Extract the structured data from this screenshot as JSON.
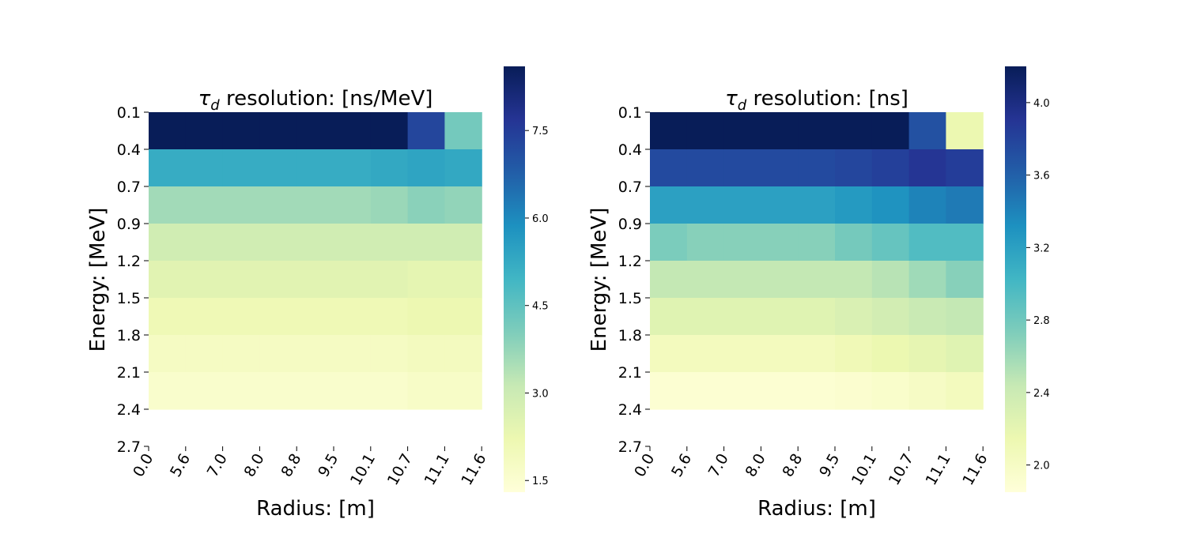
{
  "chart_data": [
    {
      "type": "heatmap",
      "title_symbol": "τ",
      "title_subscript": "d",
      "title_rest": " resolution: [ns/MeV]",
      "xlabel": "Radius: [m]",
      "ylabel": "Energy: [MeV]",
      "x_ticks": [
        "0.0",
        "5.6",
        "7.0",
        "8.0",
        "8.8",
        "9.5",
        "10.1",
        "10.7",
        "11.1",
        "11.6"
      ],
      "y_ticks": [
        "0.1",
        "0.4",
        "0.7",
        "0.9",
        "1.2",
        "1.5",
        "1.8",
        "2.1",
        "2.4",
        "2.7"
      ],
      "colorbar": {
        "vmin": 1.3,
        "vmax": 8.6,
        "ticks": [
          "1.5",
          "3.0",
          "4.5",
          "6.0",
          "7.5"
        ]
      },
      "values": [
        [
          8.6,
          8.6,
          8.6,
          8.6,
          8.6,
          8.6,
          8.6,
          7.3,
          4.2
        ],
        [
          5.2,
          5.2,
          5.2,
          5.2,
          5.2,
          5.2,
          5.3,
          5.4,
          5.3
        ],
        [
          3.6,
          3.6,
          3.6,
          3.6,
          3.6,
          3.6,
          3.7,
          3.9,
          3.8
        ],
        [
          2.9,
          2.9,
          2.9,
          2.9,
          2.9,
          2.9,
          2.9,
          2.9,
          2.9
        ],
        [
          2.5,
          2.5,
          2.5,
          2.5,
          2.5,
          2.5,
          2.5,
          2.4,
          2.4
        ],
        [
          2.1,
          2.1,
          2.1,
          2.1,
          2.1,
          2.1,
          2.1,
          2.2,
          2.2
        ],
        [
          1.8,
          1.8,
          1.8,
          1.8,
          1.8,
          1.8,
          1.8,
          1.9,
          1.9
        ],
        [
          1.6,
          1.6,
          1.6,
          1.6,
          1.6,
          1.6,
          1.6,
          1.7,
          1.7
        ]
      ]
    },
    {
      "type": "heatmap",
      "title_symbol": "τ",
      "title_subscript": "d",
      "title_rest": " resolution: [ns]",
      "xlabel": "Radius: [m]",
      "ylabel": "Energy: [MeV]",
      "x_ticks": [
        "0.0",
        "5.6",
        "7.0",
        "8.0",
        "8.8",
        "9.5",
        "10.1",
        "10.7",
        "11.1",
        "11.6"
      ],
      "y_ticks": [
        "0.1",
        "0.4",
        "0.7",
        "0.9",
        "1.2",
        "1.5",
        "1.8",
        "2.1",
        "2.4",
        "2.7"
      ],
      "colorbar": {
        "vmin": 1.85,
        "vmax": 4.2,
        "ticks": [
          "2.0",
          "2.4",
          "2.8",
          "3.2",
          "3.6",
          "4.0"
        ]
      },
      "values": [
        [
          4.2,
          4.2,
          4.2,
          4.2,
          4.2,
          4.2,
          4.2,
          3.7,
          2.15
        ],
        [
          3.75,
          3.75,
          3.75,
          3.75,
          3.75,
          3.78,
          3.82,
          3.9,
          3.84
        ],
        [
          3.2,
          3.2,
          3.2,
          3.2,
          3.2,
          3.25,
          3.3,
          3.4,
          3.45
        ],
        [
          2.75,
          2.7,
          2.7,
          2.7,
          2.7,
          2.78,
          2.85,
          2.95,
          2.95
        ],
        [
          2.45,
          2.45,
          2.45,
          2.45,
          2.45,
          2.45,
          2.5,
          2.6,
          2.7
        ],
        [
          2.25,
          2.25,
          2.25,
          2.25,
          2.25,
          2.3,
          2.35,
          2.42,
          2.45
        ],
        [
          2.05,
          2.05,
          2.05,
          2.05,
          2.05,
          2.1,
          2.15,
          2.2,
          2.25
        ],
        [
          1.9,
          1.9,
          1.9,
          1.9,
          1.9,
          1.92,
          1.95,
          2.0,
          2.05
        ]
      ]
    }
  ]
}
